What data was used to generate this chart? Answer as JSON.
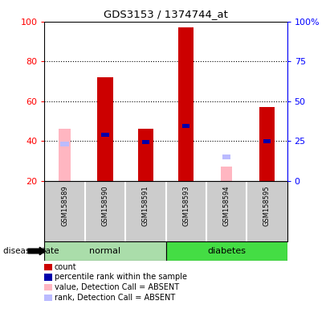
{
  "title": "GDS3153 / 1374744_at",
  "samples": [
    "GSM158589",
    "GSM158590",
    "GSM158591",
    "GSM158593",
    "GSM158594",
    "GSM158595"
  ],
  "count_values": [
    null,
    72,
    46,
    97,
    null,
    57
  ],
  "count_color": "#CC0000",
  "percentile_values": [
    null,
    43,
    39.5,
    47.5,
    null,
    40
  ],
  "percentile_color": "#0000AA",
  "absent_value_values": [
    46,
    null,
    null,
    null,
    27,
    null
  ],
  "absent_value_color": "#FFB6C1",
  "absent_rank_values": [
    38.5,
    null,
    null,
    null,
    32,
    null
  ],
  "absent_rank_color": "#BBBBFF",
  "bar_bottom": 20,
  "ylim_left": [
    20,
    100
  ],
  "yticks_left": [
    20,
    40,
    60,
    80,
    100
  ],
  "yticks_right": [
    0,
    25,
    50,
    75,
    100
  ],
  "yticklabels_right": [
    "0",
    "25",
    "50",
    "75",
    "100%"
  ],
  "bar_width": 0.38,
  "legend_entries": [
    {
      "label": "count",
      "color": "#CC0000"
    },
    {
      "label": "percentile rank within the sample",
      "color": "#0000AA"
    },
    {
      "label": "value, Detection Call = ABSENT",
      "color": "#FFB6C1"
    },
    {
      "label": "rank, Detection Call = ABSENT",
      "color": "#BBBBFF"
    }
  ],
  "disease_state_label": "disease state",
  "label_area_color": "#CCCCCC",
  "normal_group_color": "#AADDAA",
  "diabetes_group_color": "#44DD44",
  "grid_yticks": [
    40,
    60,
    80
  ]
}
